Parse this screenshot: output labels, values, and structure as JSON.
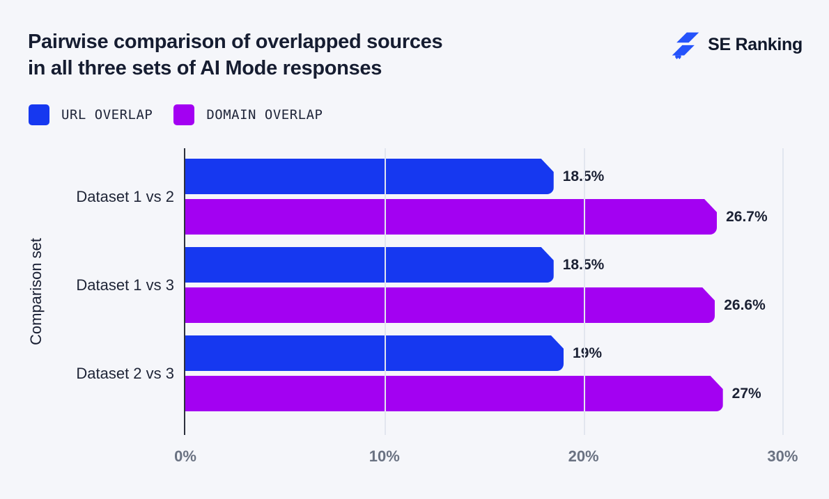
{
  "page": {
    "background": "#f5f6fa"
  },
  "header": {
    "title_lines": [
      "Pairwise comparison of overlapped sources",
      "in all three sets of AI Mode responses"
    ],
    "brand": "SE Ranking"
  },
  "colors": {
    "url_overlap_blue": "#1638f0",
    "domain_overlap_purple": "#a301f2",
    "text_dark": "#161d31",
    "tick_gray": "#6a7282",
    "gridline": "#e2e6ef",
    "axis_line": "#2c313d",
    "logo_blue": "#2553fb",
    "background": "#f5f6fa"
  },
  "chart_data": {
    "type": "bar",
    "orientation": "horizontal",
    "title": "Pairwise comparison of overlapped sources in all three sets of AI Mode responses",
    "xlabel": "",
    "ylabel": "Comparison set",
    "categories": [
      "Dataset 1 vs 2",
      "Dataset 1 vs 3",
      "Dataset 2 vs 3"
    ],
    "series": [
      {
        "name": "URL OVERLAP",
        "color": "#1638f0",
        "values": [
          18.5,
          18.5,
          19
        ],
        "labels": [
          "18.5%",
          "18.5%",
          "19%"
        ]
      },
      {
        "name": "DOMAIN OVERLAP",
        "color": "#a301f2",
        "values": [
          26.7,
          26.6,
          27
        ],
        "labels": [
          "26.7%",
          "26.6%",
          "27%"
        ]
      }
    ],
    "xlim": [
      0,
      31
    ],
    "x_ticks": [
      {
        "value": 0,
        "label": "0%"
      },
      {
        "value": 10,
        "label": "10%"
      },
      {
        "value": 20,
        "label": "20%"
      },
      {
        "value": 30,
        "label": "30%"
      }
    ],
    "grid": "vertical",
    "legend_position": "top-left"
  }
}
